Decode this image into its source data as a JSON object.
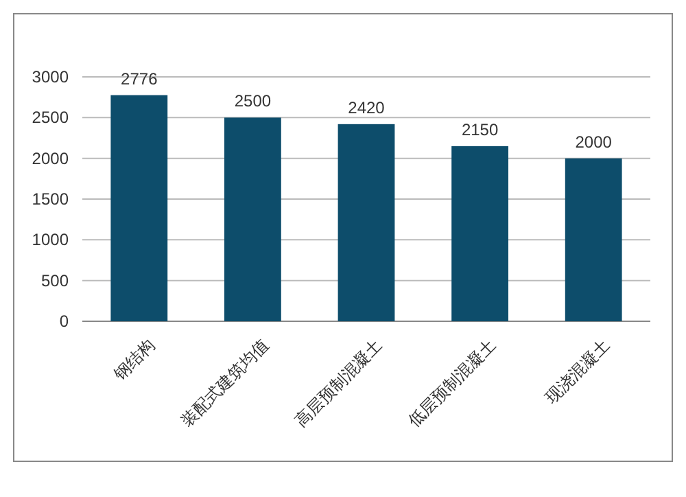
{
  "chart_data": {
    "type": "bar",
    "categories": [
      "钢结构",
      "装配式建筑均值",
      "高层预制混凝土",
      "低层预制混凝土",
      "现浇混凝土"
    ],
    "values": [
      2776,
      2500,
      2420,
      2150,
      2000
    ],
    "color": "#0d4d6b",
    "ylim": [
      0,
      3000
    ],
    "yticks": [
      0,
      500,
      1000,
      1500,
      2000,
      2500,
      3000
    ],
    "grid": "y",
    "data_labels": true
  }
}
